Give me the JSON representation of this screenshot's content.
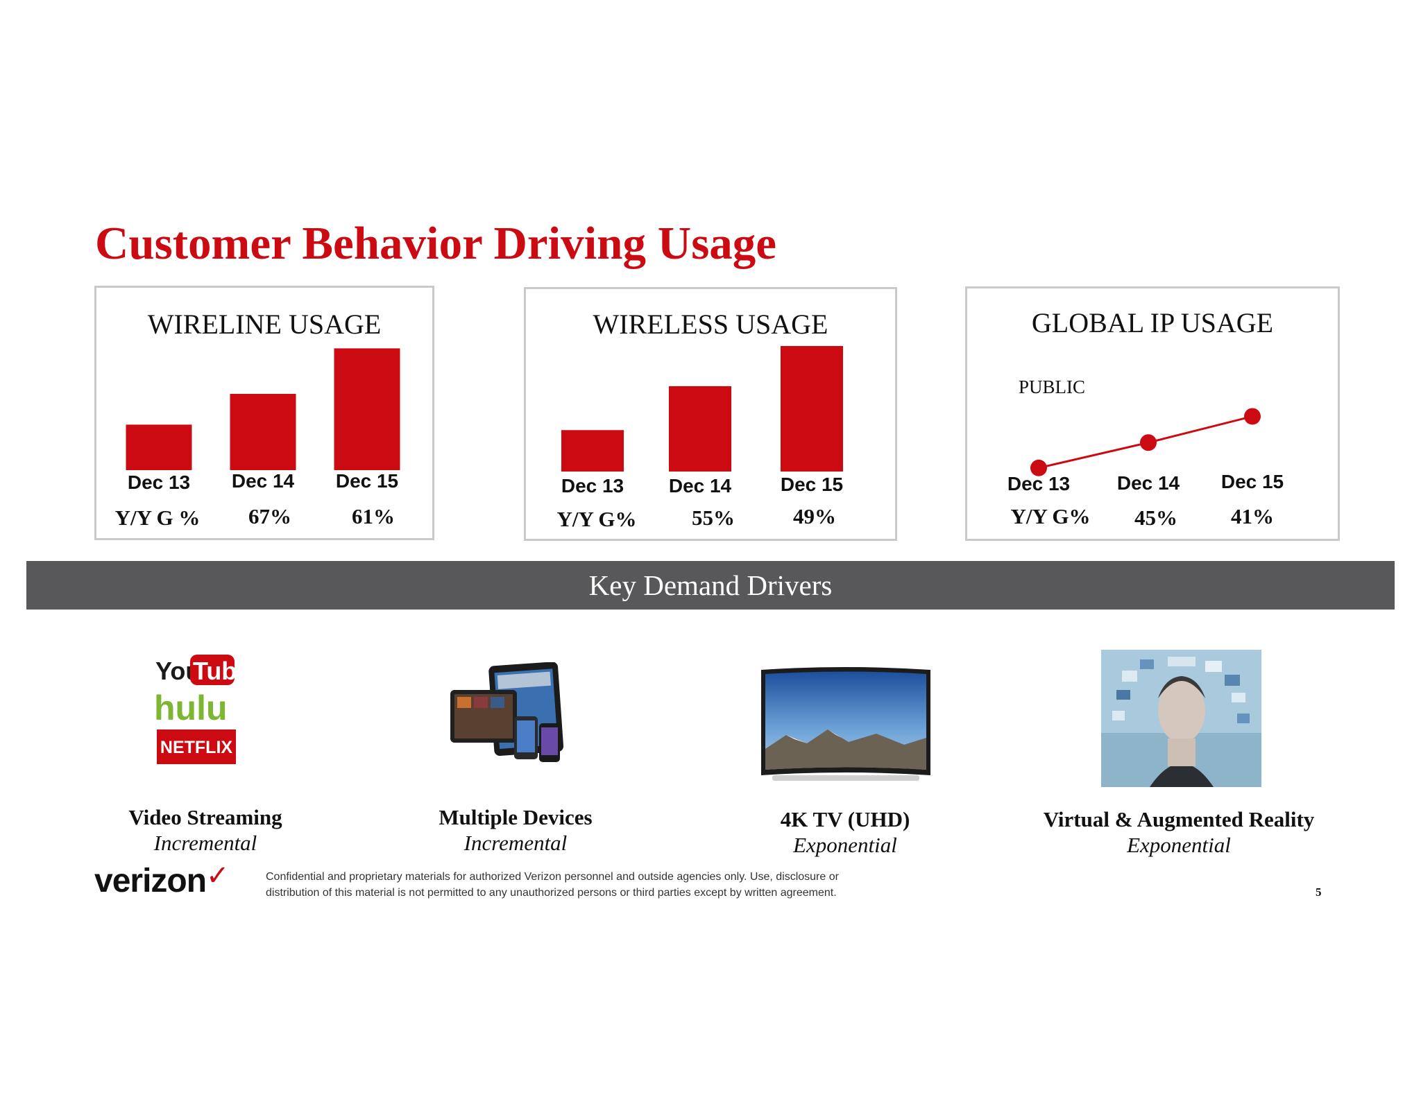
{
  "title": "Customer Behavior Driving Usage",
  "colors": {
    "accent": "#cc0a12",
    "band": "#58585a",
    "panel_border": "#c9c9c9"
  },
  "chart_data": [
    {
      "type": "bar",
      "title": "WIRELINE USAGE",
      "categories": [
        "Dec 13",
        "Dec 14",
        "Dec 15"
      ],
      "values": [
        34,
        57,
        91
      ],
      "ylim": [
        0,
        100
      ],
      "growth_label": "Y/Y G %",
      "growth": [
        "67%",
        "61%"
      ]
    },
    {
      "type": "bar",
      "title": "WIRELESS USAGE",
      "categories": [
        "Dec 13",
        "Dec 14",
        "Dec 15"
      ],
      "values": [
        33,
        68,
        100
      ],
      "ylim": [
        0,
        100
      ],
      "growth_label": "Y/Y G%",
      "growth": [
        "55%",
        "49%"
      ]
    },
    {
      "type": "line",
      "title": "GLOBAL IP USAGE",
      "series_label": "PUBLIC",
      "categories": [
        "Dec 13",
        "Dec 14",
        "Dec 15"
      ],
      "values": [
        20,
        49,
        79
      ],
      "ylim": [
        0,
        100
      ],
      "growth_label": "Y/Y G%",
      "growth": [
        "45%",
        "41%"
      ]
    }
  ],
  "band_label": "Key Demand Drivers",
  "drivers": [
    {
      "name": "Video Streaming",
      "impact": "Incremental",
      "icon": "streaming-logos-icon",
      "logo_texts": [
        "You",
        "Tube",
        "hulu",
        "NETFLIX"
      ]
    },
    {
      "name": "Multiple Devices",
      "impact": "Incremental",
      "icon": "devices-icon"
    },
    {
      "name": "4K TV (UHD)",
      "impact": "Exponential",
      "icon": "tv-icon"
    },
    {
      "name": "Virtual & Augmented Reality",
      "impact": "Exponential",
      "icon": "vr-icon"
    }
  ],
  "footer": {
    "logo": "verizon",
    "logo_mark": "✓",
    "disclaimer_line1": "Confidential and proprietary materials for authorized Verizon personnel and outside agencies only. Use, disclosure or",
    "disclaimer_line2": "distribution of this material is not permitted to any unauthorized persons or third parties except by written agreement.",
    "page_number": "5"
  }
}
